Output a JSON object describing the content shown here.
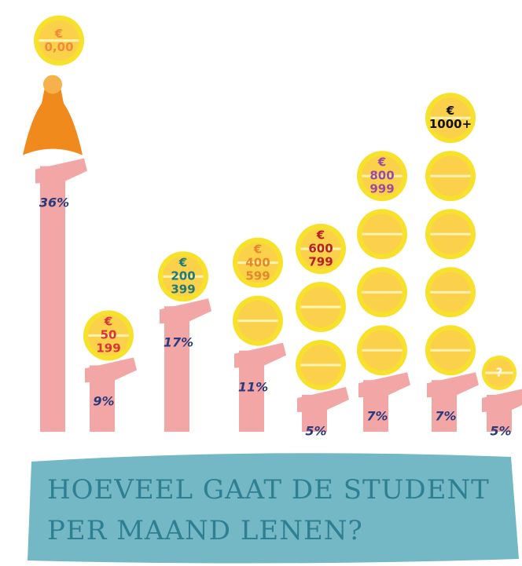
{
  "chart_data": {
    "type": "bar",
    "title": "HOEVEEL GAAT DE STUDENT PER MAAND LENEN?",
    "categories": [
      "€\n0,00",
      "€\n50\n199",
      "€\n200\n399",
      "€\n400\n599",
      "€\n600\n799",
      "€\n800\n999",
      "€\n1000+",
      "?"
    ],
    "values": [
      36,
      9,
      17,
      11,
      5,
      7,
      7,
      5
    ],
    "value_labels": [
      "36%",
      "9%",
      "17%",
      "11%",
      "5%",
      "7%",
      "7%",
      "5%"
    ],
    "color": "#f2a7a6",
    "label_colors": [
      "#f08a3c",
      "#d8353a",
      "#1f7a7a",
      "#e08a2a",
      "#b52020",
      "#9b4aa0",
      "#111111",
      "#ffffff"
    ]
  }
}
